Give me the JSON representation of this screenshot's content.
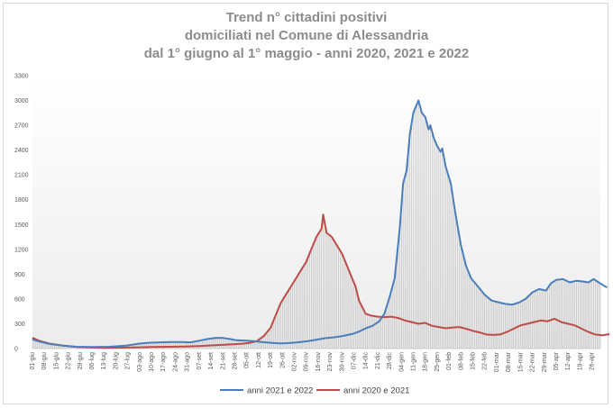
{
  "title": {
    "line1": "Trend n° cittadini positivi",
    "line2": "domiciliati nel Comune di Alessandria",
    "line3": "dal 1° giugno al 1° maggio - anni 2020, 2021 e 2022"
  },
  "colors": {
    "series_2122": "#4a7ebb",
    "series_2021": "#be4b48",
    "bars": "#bfbfbf",
    "grid_band": "#f2f2f2"
  },
  "chart_data": {
    "type": "line",
    "title": "Trend n° cittadini positivi domiciliati nel Comune di Alessandria dal 1° giugno al 1° maggio - anni 2020, 2021 e 2022",
    "xlabel": "",
    "ylabel": "",
    "ylim": [
      0,
      3300
    ],
    "yticks": [
      0,
      300,
      600,
      900,
      1200,
      1500,
      1800,
      2100,
      2400,
      2700,
      3000,
      3300
    ],
    "grid": false,
    "legend_position": "bottom",
    "x_tick_labels": [
      "01-giu",
      "08-giu",
      "15-giu",
      "22-giu",
      "29-giu",
      "06-lug",
      "13-lug",
      "20-lug",
      "27-lug",
      "03-ago",
      "10-ago",
      "17-ago",
      "24-ago",
      "31-ago",
      "07-set",
      "14-set",
      "21-set",
      "28-set",
      "05-ott",
      "12-ott",
      "19-ott",
      "26-ott",
      "02-nov",
      "09-nov",
      "16-nov",
      "23-nov",
      "30-nov",
      "07-dic",
      "14-dic",
      "21-dic",
      "28-dic",
      "04-gen",
      "11-gen",
      "18-gen",
      "25-gen",
      "01-feb",
      "08-feb",
      "15-feb",
      "22-feb",
      "01-mar",
      "08-mar",
      "15-mar",
      "22-mar",
      "29-mar",
      "05-apr",
      "12-apr",
      "19-apr",
      "26-apr"
    ],
    "x_days": [
      0,
      7,
      14,
      21,
      28,
      35,
      42,
      49,
      56,
      63,
      70,
      77,
      84,
      91,
      98,
      105,
      112,
      119,
      126,
      133,
      140,
      147,
      154,
      161,
      168,
      175,
      182,
      189,
      196,
      203,
      210,
      217,
      224,
      231,
      238,
      245,
      252,
      259,
      266,
      273,
      280,
      287,
      294,
      301,
      308,
      315,
      322,
      329
    ],
    "x_last_day": 334,
    "series": [
      {
        "name": "anni 2021 e 2022",
        "color": "#4a7ebb",
        "points": [
          [
            0,
            110
          ],
          [
            4,
            85
          ],
          [
            10,
            55
          ],
          [
            18,
            35
          ],
          [
            26,
            22
          ],
          [
            35,
            18
          ],
          [
            45,
            22
          ],
          [
            55,
            35
          ],
          [
            63,
            60
          ],
          [
            68,
            70
          ],
          [
            75,
            75
          ],
          [
            82,
            80
          ],
          [
            88,
            78
          ],
          [
            93,
            75
          ],
          [
            98,
            95
          ],
          [
            103,
            115
          ],
          [
            108,
            130
          ],
          [
            112,
            128
          ],
          [
            116,
            115
          ],
          [
            120,
            100
          ],
          [
            126,
            95
          ],
          [
            130,
            90
          ],
          [
            135,
            80
          ],
          [
            140,
            70
          ],
          [
            145,
            62
          ],
          [
            150,
            65
          ],
          [
            156,
            75
          ],
          [
            162,
            90
          ],
          [
            168,
            110
          ],
          [
            172,
            125
          ],
          [
            177,
            135
          ],
          [
            182,
            150
          ],
          [
            188,
            175
          ],
          [
            192,
            205
          ],
          [
            196,
            245
          ],
          [
            200,
            275
          ],
          [
            204,
            330
          ],
          [
            207,
            420
          ],
          [
            210,
            620
          ],
          [
            213,
            850
          ],
          [
            216,
            1450
          ],
          [
            218,
            2000
          ],
          [
            220,
            2150
          ],
          [
            222,
            2600
          ],
          [
            224,
            2850
          ],
          [
            226,
            2950
          ],
          [
            227,
            3000
          ],
          [
            229,
            2850
          ],
          [
            231,
            2800
          ],
          [
            233,
            2650
          ],
          [
            234,
            2700
          ],
          [
            236,
            2550
          ],
          [
            238,
            2450
          ],
          [
            240,
            2380
          ],
          [
            241,
            2420
          ],
          [
            243,
            2200
          ],
          [
            246,
            2000
          ],
          [
            249,
            1600
          ],
          [
            252,
            1250
          ],
          [
            255,
            1000
          ],
          [
            258,
            850
          ],
          [
            262,
            750
          ],
          [
            266,
            650
          ],
          [
            270,
            580
          ],
          [
            274,
            560
          ],
          [
            278,
            540
          ],
          [
            282,
            530
          ],
          [
            286,
            555
          ],
          [
            290,
            600
          ],
          [
            294,
            680
          ],
          [
            298,
            720
          ],
          [
            302,
            700
          ],
          [
            305,
            790
          ],
          [
            308,
            830
          ],
          [
            312,
            840
          ],
          [
            316,
            800
          ],
          [
            320,
            820
          ],
          [
            324,
            810
          ],
          [
            327,
            800
          ],
          [
            330,
            840
          ],
          [
            333,
            800
          ],
          [
            336,
            760
          ],
          [
            338,
            740
          ]
        ]
      },
      {
        "name": "anni 2020 e 2021",
        "color": "#be4b48",
        "points": [
          [
            0,
            130
          ],
          [
            4,
            95
          ],
          [
            10,
            60
          ],
          [
            18,
            35
          ],
          [
            26,
            20
          ],
          [
            35,
            12
          ],
          [
            45,
            10
          ],
          [
            55,
            12
          ],
          [
            63,
            15
          ],
          [
            70,
            20
          ],
          [
            80,
            22
          ],
          [
            90,
            25
          ],
          [
            98,
            30
          ],
          [
            105,
            38
          ],
          [
            112,
            45
          ],
          [
            118,
            52
          ],
          [
            124,
            60
          ],
          [
            128,
            70
          ],
          [
            132,
            90
          ],
          [
            136,
            150
          ],
          [
            140,
            250
          ],
          [
            143,
            400
          ],
          [
            146,
            550
          ],
          [
            149,
            650
          ],
          [
            152,
            750
          ],
          [
            155,
            850
          ],
          [
            158,
            950
          ],
          [
            161,
            1050
          ],
          [
            164,
            1200
          ],
          [
            167,
            1350
          ],
          [
            170,
            1450
          ],
          [
            171,
            1620
          ],
          [
            173,
            1400
          ],
          [
            176,
            1350
          ],
          [
            179,
            1250
          ],
          [
            182,
            1150
          ],
          [
            185,
            1000
          ],
          [
            188,
            850
          ],
          [
            190,
            750
          ],
          [
            192,
            580
          ],
          [
            194,
            500
          ],
          [
            196,
            420
          ],
          [
            199,
            400
          ],
          [
            203,
            385
          ],
          [
            207,
            380
          ],
          [
            211,
            385
          ],
          [
            215,
            370
          ],
          [
            219,
            340
          ],
          [
            223,
            320
          ],
          [
            227,
            300
          ],
          [
            231,
            310
          ],
          [
            235,
            275
          ],
          [
            239,
            260
          ],
          [
            243,
            245
          ],
          [
            247,
            255
          ],
          [
            251,
            260
          ],
          [
            255,
            240
          ],
          [
            259,
            215
          ],
          [
            263,
            195
          ],
          [
            267,
            170
          ],
          [
            271,
            165
          ],
          [
            275,
            170
          ],
          [
            279,
            200
          ],
          [
            283,
            240
          ],
          [
            287,
            280
          ],
          [
            291,
            300
          ],
          [
            295,
            320
          ],
          [
            299,
            340
          ],
          [
            303,
            330
          ],
          [
            307,
            360
          ],
          [
            311,
            320
          ],
          [
            315,
            300
          ],
          [
            319,
            280
          ],
          [
            323,
            240
          ],
          [
            327,
            200
          ],
          [
            331,
            170
          ],
          [
            335,
            160
          ],
          [
            338,
            170
          ],
          [
            340,
            175
          ]
        ]
      }
    ]
  }
}
